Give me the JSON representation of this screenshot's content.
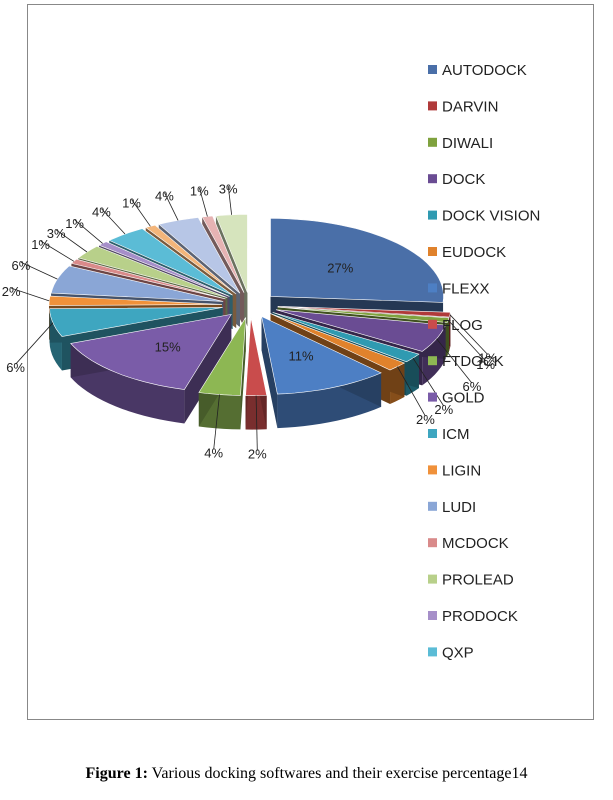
{
  "chart_data": {
    "type": "pie",
    "style": "3d-exploded",
    "legend_position": "right",
    "slices": [
      {
        "name": "AUTODOCK",
        "value": 27,
        "label": "27%",
        "color": "#4a6fa8"
      },
      {
        "name": "DARVIN",
        "value": 1,
        "label": "1%",
        "color": "#b03a3a"
      },
      {
        "name": "DIWALI",
        "value": 1,
        "label": "1%",
        "color": "#7fa23e"
      },
      {
        "name": "DOCK",
        "value": 6,
        "label": "6%",
        "color": "#6a4c93"
      },
      {
        "name": "DOCK VISION",
        "value": 2,
        "label": "2%",
        "color": "#2f9ab1"
      },
      {
        "name": "EUDOCK",
        "value": 2,
        "label": "2%",
        "color": "#e0822c"
      },
      {
        "name": "FLEXX",
        "value": 11,
        "label": "11%",
        "color": "#4d7fc4"
      },
      {
        "name": "FLOG",
        "value": 2,
        "label": "2%",
        "color": "#c94c4c"
      },
      {
        "name": "FTDOCK",
        "value": 4,
        "label": "4%",
        "color": "#8db753"
      },
      {
        "name": "GOLD",
        "value": 15,
        "label": "15%",
        "color": "#7a5ca8"
      },
      {
        "name": "ICM",
        "value": 6,
        "label": "6%",
        "color": "#3ea6c0"
      },
      {
        "name": "LIGIN",
        "value": 2,
        "label": "2%",
        "color": "#f0913a"
      },
      {
        "name": "LUDI",
        "value": 6,
        "label": "6%",
        "color": "#8aa6d6"
      },
      {
        "name": "MCDOCK",
        "value": 1,
        "label": "1%",
        "color": "#d98a8a"
      },
      {
        "name": "PROLEAD",
        "value": 3,
        "label": "3%",
        "color": "#b8d08a"
      },
      {
        "name": "PRODOCK",
        "value": 1,
        "label": "1%",
        "color": "#a68fc9"
      },
      {
        "name": "QXP",
        "value": 4,
        "label": "4%",
        "color": "#5bbcd6"
      },
      {
        "name": "",
        "value": 1,
        "label": "1%",
        "color": "#f3b57a"
      },
      {
        "name": "",
        "value": 4,
        "label": "4%",
        "color": "#b7c6e6"
      },
      {
        "name": "",
        "value": 1,
        "label": "1%",
        "color": "#e6b3b3"
      },
      {
        "name": "",
        "value": 3,
        "label": "3%",
        "color": "#d6e4bd"
      }
    ]
  },
  "caption": {
    "prefix": "Figure 1:",
    "text": " Various docking softwares and their exercise percentage14"
  }
}
